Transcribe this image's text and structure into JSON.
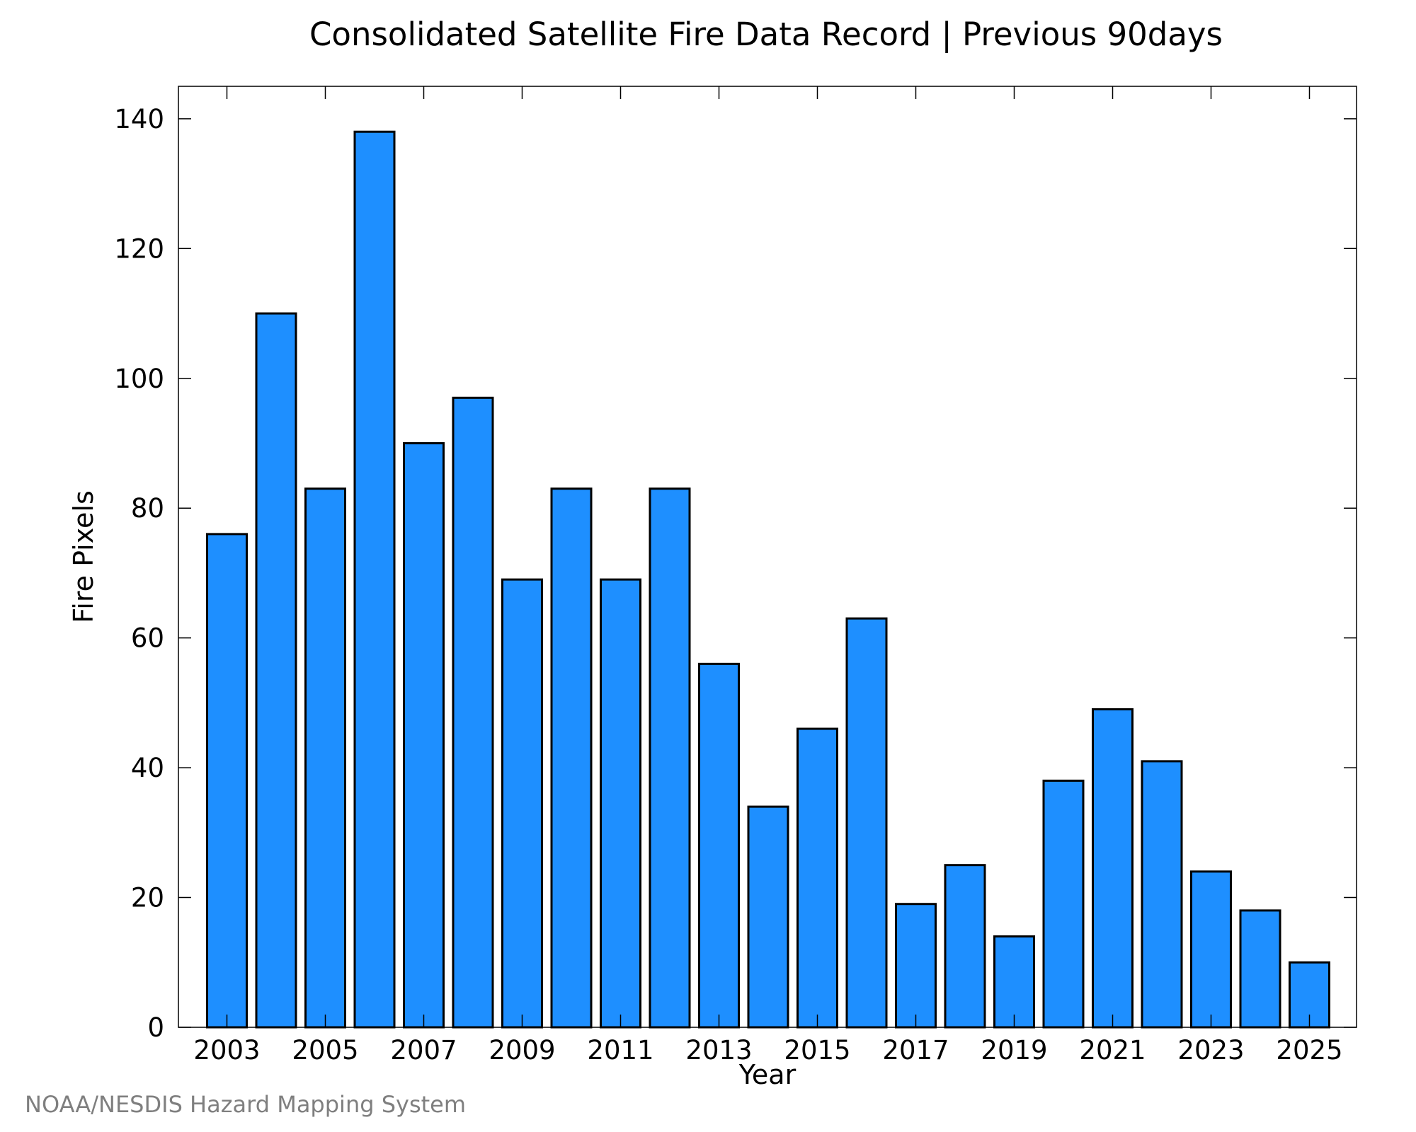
{
  "chart_data": {
    "type": "bar",
    "title": "Consolidated Satellite Fire Data Record | Previous 90days",
    "xlabel": "Year",
    "ylabel": "Fire Pixels",
    "categories": [
      "2003",
      "2004",
      "2005",
      "2006",
      "2007",
      "2008",
      "2009",
      "2010",
      "2011",
      "2012",
      "2013",
      "2014",
      "2015",
      "2016",
      "2017",
      "2018",
      "2019",
      "2020",
      "2021",
      "2022",
      "2023",
      "2024",
      "2025"
    ],
    "values": [
      76,
      110,
      83,
      138,
      90,
      97,
      69,
      83,
      69,
      83,
      56,
      34,
      46,
      63,
      19,
      25,
      14,
      38,
      49,
      41,
      24,
      18,
      10
    ],
    "x_tick_labels": [
      "2003",
      "2005",
      "2007",
      "2009",
      "2011",
      "2013",
      "2015",
      "2017",
      "2019",
      "2021",
      "2023",
      "2025"
    ],
    "y_tick_labels": [
      "0",
      "20",
      "40",
      "60",
      "80",
      "100",
      "120",
      "140"
    ],
    "ylim": [
      0,
      145
    ],
    "grid": false,
    "bar_color": "#1e8fff",
    "bar_edge_color": "#000000"
  },
  "footer": {
    "credit": "NOAA/NESDIS Hazard Mapping System"
  }
}
